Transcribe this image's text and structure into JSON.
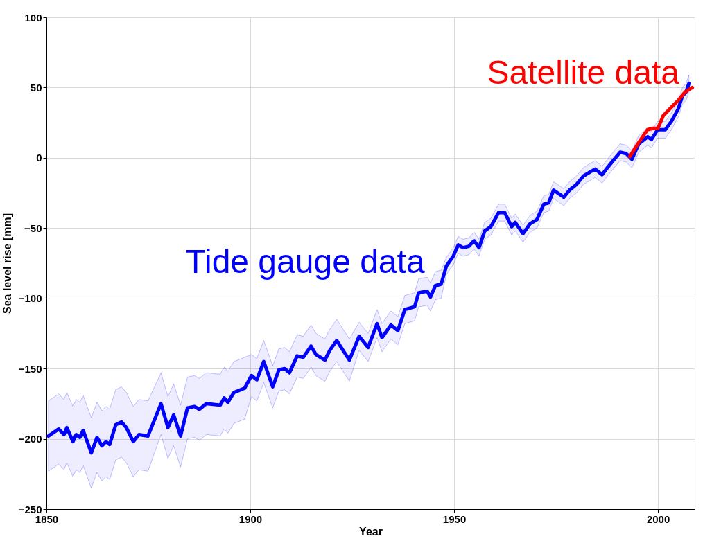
{
  "chart_data": {
    "type": "line",
    "xlabel": "Year",
    "ylabel": "Sea level rise [mm]",
    "xlim": [
      1850,
      2009
    ],
    "xticks": [
      1850,
      1900,
      1950,
      2000
    ],
    "ylim": [
      -250,
      100
    ],
    "yticks": [
      -250,
      -200,
      -150,
      -100,
      -50,
      0,
      50,
      100
    ],
    "grid": true,
    "line_style": "solid",
    "marker": "none",
    "series": [
      {
        "name": "Tide gauge data",
        "color": "#0000ff",
        "x": [
          1850.5,
          1853,
          1854.3,
          1855,
          1856.5,
          1857.3,
          1858.2,
          1859,
          1861,
          1862.4,
          1863.6,
          1864.6,
          1865.5,
          1867,
          1868.4,
          1869.6,
          1871.3,
          1872.7,
          1874.9,
          1878.1,
          1879.8,
          1881.2,
          1882.9,
          1884.6,
          1886.3,
          1887.5,
          1889.2,
          1892.6,
          1893.6,
          1894.5,
          1896,
          1898.6,
          1900.3,
          1901.6,
          1903.3,
          1905.5,
          1907,
          1908.4,
          1909.6,
          1911.5,
          1913,
          1914.9,
          1916.1,
          1918.3,
          1919.5,
          1921.2,
          1924.3,
          1926.7,
          1928.9,
          1931.1,
          1932.3,
          1934.5,
          1936.2,
          1937.9,
          1940.3,
          1941.3,
          1943.4,
          1944.2,
          1945.4,
          1946.8,
          1948.1,
          1949.8,
          1951,
          1952.2,
          1953.6,
          1954.9,
          1956.1,
          1957.5,
          1959,
          1960.9,
          1962.4,
          1964.1,
          1965,
          1966.9,
          1968.6,
          1970.3,
          1972,
          1973.2,
          1974.4,
          1976.9,
          1978.3,
          1980,
          1981.7,
          1983.4,
          1984.6,
          1986.3,
          1987.6,
          1989,
          1990.7,
          1992.2,
          1993.6,
          1995.3,
          1997.5,
          1998.4,
          1999.9,
          2001.8,
          2003.3,
          2005,
          2006,
          2006.9,
          2007.6
        ],
        "values": [
          -198,
          -193,
          -197,
          -192,
          -202,
          -197,
          -199,
          -194,
          -210,
          -199,
          -205,
          -202,
          -204,
          -190,
          -188,
          -192,
          -202,
          -197,
          -198,
          -175,
          -192,
          -183,
          -198,
          -178,
          -177,
          -179,
          -175,
          -176,
          -171,
          -174,
          -167,
          -164,
          -155,
          -158,
          -145,
          -163,
          -151,
          -150,
          -153,
          -141,
          -142,
          -134,
          -140,
          -144,
          -137,
          -130,
          -144,
          -127,
          -135,
          -118,
          -128,
          -119,
          -123,
          -108,
          -106,
          -96,
          -95,
          -99,
          -91,
          -90,
          -77,
          -70,
          -62,
          -64,
          -63,
          -59,
          -64,
          -52,
          -49,
          -39,
          -39,
          -49,
          -46,
          -54,
          -47,
          -44,
          -33,
          -32,
          -23,
          -28,
          -23,
          -19,
          -13,
          -10,
          -8,
          -12,
          -7,
          -2,
          4,
          3,
          -1,
          10,
          15,
          13,
          20,
          20,
          26,
          35,
          44,
          47,
          53
        ],
        "lower": [
          -223,
          -218,
          -222,
          -217,
          -227,
          -222,
          -224,
          -219,
          -235,
          -224,
          -230,
          -227,
          -229,
          -215,
          -213,
          -217,
          -227,
          -222,
          -223,
          -197,
          -214,
          -205,
          -220,
          -200,
          -199,
          -201,
          -197,
          -198,
          -193,
          -196,
          -189,
          -186,
          -170,
          -173,
          -160,
          -178,
          -166,
          -165,
          -168,
          -156,
          -157,
          -149,
          -155,
          -159,
          -152,
          -145,
          -159,
          -137,
          -145,
          -128,
          -138,
          -129,
          -133,
          -118,
          -116,
          -106,
          -105,
          -109,
          -101,
          -100,
          -83,
          -76,
          -68,
          -70,
          -69,
          -65,
          -70,
          -58,
          -55,
          -45,
          -45,
          -55,
          -52,
          -60,
          -53,
          -50,
          -39,
          -38,
          -29,
          -34,
          -29,
          -25,
          -19,
          -16,
          -14,
          -18,
          -13,
          -8,
          -2,
          -3,
          -7,
          4,
          9,
          7,
          14,
          14,
          20,
          29,
          38,
          41,
          47
        ],
        "upper": [
          -173,
          -168,
          -172,
          -167,
          -177,
          -172,
          -174,
          -169,
          -185,
          -174,
          -180,
          -177,
          -179,
          -165,
          -163,
          -167,
          -177,
          -172,
          -173,
          -153,
          -170,
          -161,
          -176,
          -156,
          -155,
          -157,
          -153,
          -154,
          -149,
          -152,
          -145,
          -142,
          -140,
          -143,
          -130,
          -148,
          -136,
          -135,
          -138,
          -126,
          -127,
          -119,
          -125,
          -129,
          -122,
          -115,
          -129,
          -117,
          -125,
          -108,
          -118,
          -109,
          -113,
          -98,
          -96,
          -86,
          -85,
          -89,
          -81,
          -80,
          -71,
          -64,
          -56,
          -58,
          -57,
          -53,
          -58,
          -46,
          -43,
          -33,
          -33,
          -43,
          -40,
          -48,
          -41,
          -38,
          -27,
          -26,
          -17,
          -22,
          -17,
          -13,
          -7,
          -4,
          -2,
          -6,
          -1,
          4,
          10,
          9,
          5,
          16,
          21,
          19,
          26,
          26,
          32,
          41,
          50,
          53,
          59
        ]
      },
      {
        "name": "Satellite data",
        "color": "#ff0000",
        "x": [
          1993.1,
          1995.3,
          1997.4,
          1998.7,
          2000,
          2001.3,
          2003.3,
          2005,
          2006.7,
          2008.4
        ],
        "values": [
          1,
          11,
          20,
          21,
          21,
          30,
          36,
          41,
          47,
          50
        ]
      }
    ]
  }
}
